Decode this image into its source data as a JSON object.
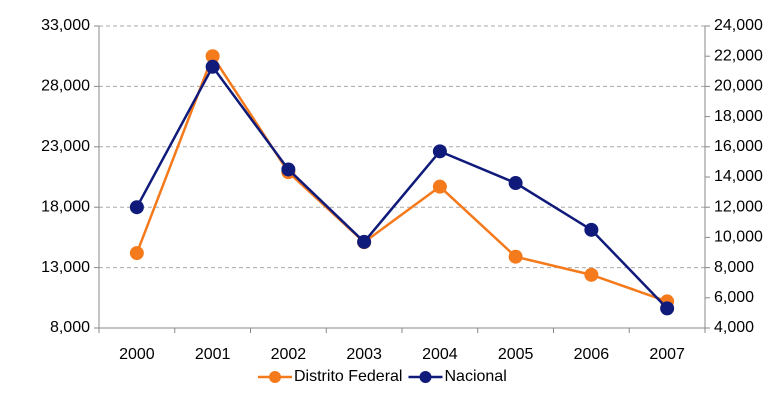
{
  "chart_data": {
    "type": "line",
    "categories": [
      "2000",
      "2001",
      "2002",
      "2003",
      "2004",
      "2005",
      "2006",
      "2007"
    ],
    "series": [
      {
        "name": "Distrito Federal",
        "color": "#f47a1c",
        "values": [
          14200,
          30500,
          20900,
          15100,
          19700,
          13900,
          12400,
          10200
        ]
      },
      {
        "name": "Nacional",
        "color": "#0f1a7a",
        "axis": "y2",
        "values": [
          12000,
          21300,
          14500,
          9700,
          15700,
          13600,
          10500,
          5300
        ]
      }
    ],
    "ylim": [
      8000,
      33000
    ],
    "yticks": [
      {
        "value": 8000,
        "label": "8,000"
      },
      {
        "value": 13000,
        "label": "13,000"
      },
      {
        "value": 18000,
        "label": "18,000"
      },
      {
        "value": 23000,
        "label": "23,000"
      },
      {
        "value": 28000,
        "label": "28,000"
      },
      {
        "value": 33000,
        "label": "33,000"
      }
    ],
    "y2lim": [
      4000,
      24000
    ],
    "y2ticks": [
      {
        "value": 4000,
        "label": "4,000"
      },
      {
        "value": 6000,
        "label": "6,000"
      },
      {
        "value": 8000,
        "label": "8,000"
      },
      {
        "value": 10000,
        "label": "10,000"
      },
      {
        "value": 12000,
        "label": "12,000"
      },
      {
        "value": 14000,
        "label": "14,000"
      },
      {
        "value": 16000,
        "label": "16,000"
      },
      {
        "value": 18000,
        "label": "18,000"
      },
      {
        "value": 20000,
        "label": "20,000"
      },
      {
        "value": 22000,
        "label": "22,000"
      },
      {
        "value": 24000,
        "label": "24,000"
      }
    ],
    "grid": true,
    "legend": "bottom"
  }
}
